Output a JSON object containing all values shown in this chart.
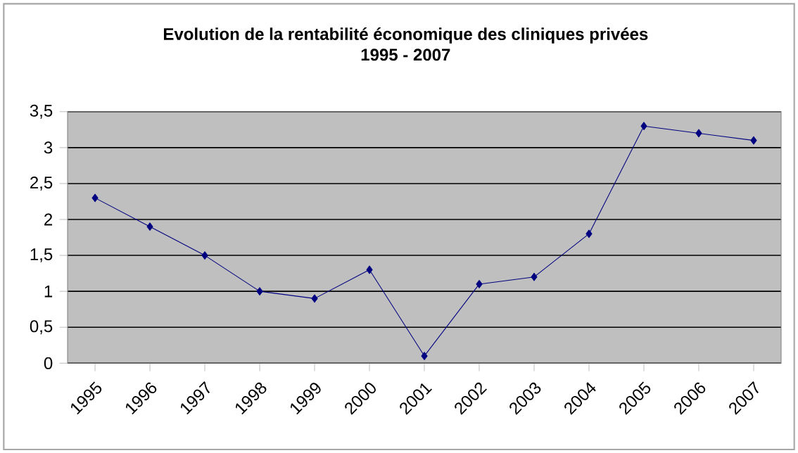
{
  "chart_data": {
    "type": "line",
    "title": "Evolution de la rentabilité économique des cliniques privées",
    "subtitle": "1995 - 2007",
    "categories": [
      "1995",
      "1996",
      "1997",
      "1998",
      "1999",
      "2000",
      "2001",
      "2002",
      "2003",
      "2004",
      "2005",
      "2006",
      "2007"
    ],
    "series": [
      {
        "color": "#000080",
        "values": [
          2.3,
          1.9,
          1.5,
          1.0,
          0.9,
          1.3,
          0.1,
          1.1,
          1.2,
          1.8,
          3.3,
          3.2,
          3.1
        ]
      }
    ],
    "ylim": [
      0,
      3.5
    ],
    "yticks": [
      0,
      {
        "value": 0.5,
        "label": "0,5"
      },
      1,
      {
        "value": 1.5,
        "label": "1,5"
      },
      2,
      {
        "value": 2.5,
        "label": "2,5"
      },
      3,
      {
        "value": 3.5,
        "label": "3,5"
      }
    ],
    "grid": "y",
    "marker": "diamond",
    "line_style": "solid"
  }
}
